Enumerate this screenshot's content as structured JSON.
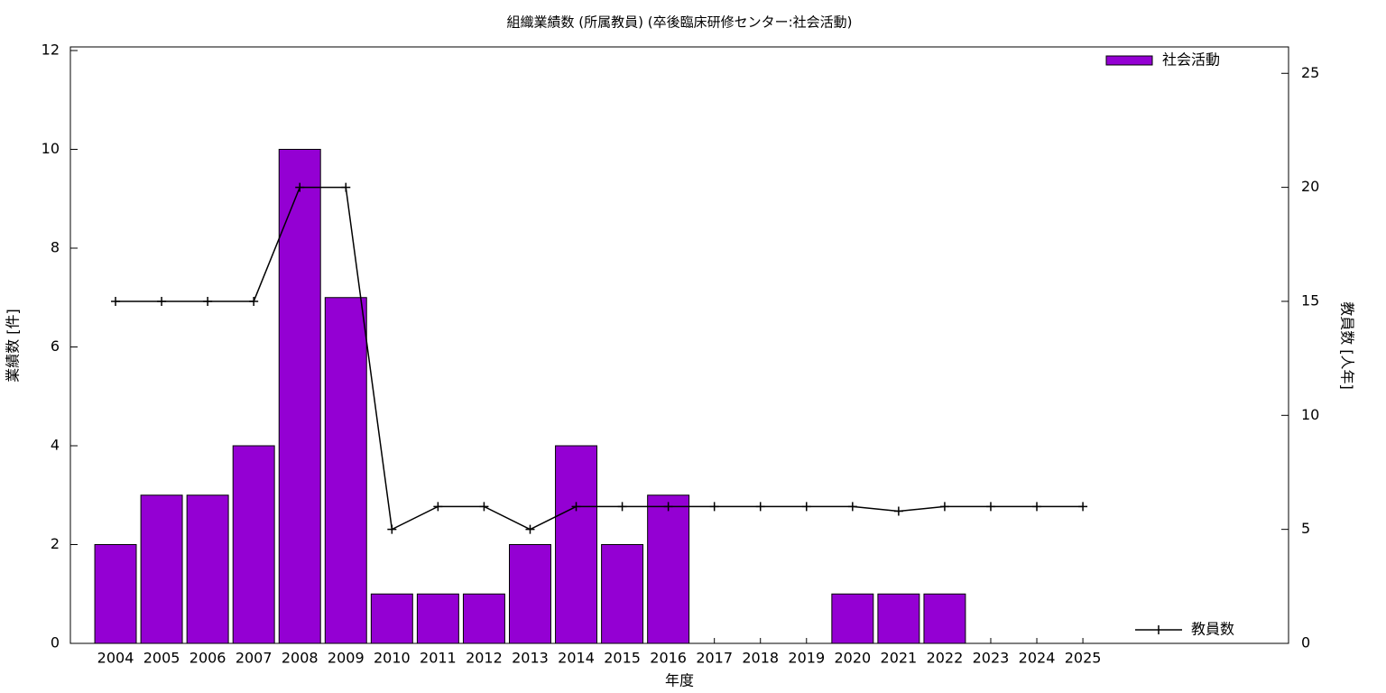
{
  "chart_data": {
    "type": "bar",
    "title": "組織業績数 (所属教員) (卒後臨床研修センター:社会活動)",
    "xlabel": "年度",
    "ylabel": "業績数 [件]",
    "y2label": "教員数 [人年]",
    "categories": [
      "2004",
      "2005",
      "2006",
      "2007",
      "2008",
      "2009",
      "2010",
      "2011",
      "2012",
      "2013",
      "2014",
      "2015",
      "2016",
      "2017",
      "2018",
      "2019",
      "2020",
      "2021",
      "2022",
      "2023",
      "2024",
      "2025"
    ],
    "series": [
      {
        "name": "社会活動",
        "type": "bar",
        "color": "#9400d3",
        "legend": "top-right",
        "values": [
          2,
          3,
          3,
          4,
          10,
          7,
          1,
          1,
          1,
          2,
          4,
          2,
          3,
          0,
          0,
          0,
          1,
          1,
          1,
          0,
          0,
          0
        ]
      },
      {
        "name": "教員数",
        "type": "line",
        "axis": "y2",
        "color": "#000000",
        "legend": "bottom-right",
        "values": [
          15,
          15,
          15,
          15,
          20,
          20,
          5,
          6,
          6,
          5,
          6,
          6,
          6,
          6,
          6,
          6,
          6,
          5.8,
          6,
          6,
          6,
          6
        ]
      }
    ],
    "ylim": [
      0,
      12
    ],
    "yticks": [
      0,
      2,
      4,
      6,
      8,
      10,
      12
    ],
    "y2lim": [
      0,
      26
    ],
    "y2ticks": [
      0,
      5,
      10,
      15,
      20,
      25
    ]
  }
}
